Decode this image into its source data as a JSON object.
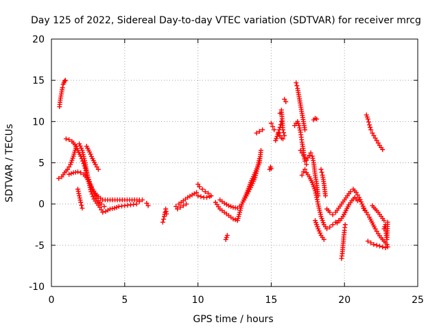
{
  "chart_data": {
    "type": "scatter",
    "title": "Day 125 of 2022, Sidereal Day-to-day VTEC variation (SDTVAR) for receiver mrcg",
    "xlabel": "GPS time / hours",
    "ylabel": "SDTVAR / TECUs",
    "xlim": [
      0,
      25
    ],
    "ylim": [
      -10,
      20
    ],
    "x_ticks": [
      0,
      5,
      10,
      15,
      20,
      25
    ],
    "y_ticks": [
      -10,
      -5,
      0,
      5,
      10,
      15,
      20
    ],
    "x_tick_labels": [
      "0",
      "5",
      "10",
      "15",
      "20",
      "25"
    ],
    "y_tick_labels": [
      "-10",
      "-5",
      "0",
      "5",
      "10",
      "15",
      "20"
    ],
    "grid": true,
    "marker": "+",
    "color": "#ff0000",
    "series": [
      {
        "name": "seg1",
        "x": [
          0.55,
          0.6,
          0.65,
          0.7,
          0.75,
          0.8,
          0.85,
          0.9,
          0.95
        ],
        "y": [
          11.8,
          12.6,
          13.1,
          13.6,
          14.1,
          14.5,
          14.7,
          14.9,
          15.0
        ]
      },
      {
        "name": "seg2",
        "x": [
          0.5,
          0.7,
          0.9,
          1.1,
          1.3,
          1.5,
          1.7,
          1.9,
          2.1,
          2.3,
          2.5,
          2.7,
          2.9,
          3.1,
          3.3,
          3.5,
          3.7,
          4.0,
          4.3,
          4.6,
          5.0,
          5.4,
          5.8,
          6.0,
          6.2
        ],
        "y": [
          3.1,
          3.3,
          3.8,
          4.2,
          4.8,
          5.8,
          7.0,
          7.3,
          6.5,
          5.0,
          3.0,
          1.5,
          0.6,
          0.1,
          -0.4,
          -1.0,
          -0.9,
          -0.6,
          -0.5,
          -0.3,
          -0.2,
          -0.1,
          0.0,
          0.3,
          0.5
        ]
      },
      {
        "name": "seg3",
        "x": [
          1.0,
          1.2,
          1.4,
          1.6,
          1.8,
          2.0,
          2.2,
          2.4,
          2.6,
          2.8,
          3.0,
          3.2,
          3.5,
          4.0,
          4.5,
          5.0,
          5.5,
          6.0
        ],
        "y": [
          7.9,
          7.8,
          7.6,
          7.2,
          6.5,
          5.8,
          4.9,
          3.8,
          2.7,
          1.8,
          1.3,
          0.9,
          0.5,
          0.5,
          0.5,
          0.5,
          0.5,
          0.5
        ]
      },
      {
        "name": "seg4",
        "x": [
          1.2,
          1.5,
          1.8,
          2.0,
          2.2,
          2.4,
          2.6,
          2.8,
          3.0,
          3.2,
          3.4,
          3.6
        ],
        "y": [
          3.6,
          3.8,
          3.9,
          3.8,
          3.6,
          3.2,
          2.5,
          1.7,
          1.0,
          0.4,
          0.0,
          -0.3
        ]
      },
      {
        "name": "seg5",
        "x": [
          2.4,
          2.6,
          2.8,
          3.0,
          3.2
        ],
        "y": [
          7.0,
          6.3,
          5.5,
          4.8,
          4.2
        ]
      },
      {
        "name": "seg6",
        "x": [
          1.8,
          1.9,
          2.0,
          2.1
        ],
        "y": [
          1.8,
          1.0,
          0.2,
          -0.5
        ]
      },
      {
        "name": "seg7",
        "x": [
          6.5,
          6.6
        ],
        "y": [
          0.1,
          -0.2
        ]
      },
      {
        "name": "seg8",
        "x": [
          7.6,
          7.7,
          7.75,
          7.8,
          7.85
        ],
        "y": [
          -2.2,
          -1.5,
          -1.0,
          -0.6,
          -1.2
        ]
      },
      {
        "name": "seg9",
        "x": [
          8.5,
          8.7,
          9.0,
          9.3,
          9.6,
          9.9
        ],
        "y": [
          -0.3,
          0.0,
          0.4,
          0.8,
          1.1,
          1.4
        ]
      },
      {
        "name": "seg10",
        "x": [
          8.6,
          8.8,
          9.0,
          9.2
        ],
        "y": [
          -0.6,
          -0.4,
          -0.2,
          0.0
        ]
      },
      {
        "name": "seg11",
        "x": [
          10.0,
          10.1,
          10.3,
          10.5,
          10.7,
          10.9
        ],
        "y": [
          2.4,
          2.1,
          1.8,
          1.5,
          1.3,
          1.0
        ]
      },
      {
        "name": "seg12",
        "x": [
          10.0,
          10.2,
          10.4,
          10.6,
          10.8
        ],
        "y": [
          1.0,
          0.9,
          0.8,
          0.8,
          0.9
        ]
      },
      {
        "name": "seg13",
        "x": [
          11.2,
          11.5,
          11.8,
          12.1,
          12.4,
          12.7,
          13.0,
          13.3,
          13.6,
          13.9,
          14.2
        ],
        "y": [
          0.2,
          -0.6,
          -1.0,
          -1.4,
          -1.8,
          -2.0,
          0.0,
          1.0,
          2.0,
          3.2,
          5.5
        ]
      },
      {
        "name": "seg14",
        "x": [
          11.5,
          11.8,
          12.1,
          12.4,
          12.7,
          13.0,
          13.3,
          13.6,
          13.9,
          14.2,
          14.3
        ],
        "y": [
          0.5,
          0.1,
          -0.2,
          -0.4,
          -0.5,
          0.0,
          1.2,
          2.6,
          3.8,
          5.0,
          6.5
        ]
      },
      {
        "name": "seg15",
        "x": [
          11.9,
          12.0
        ],
        "y": [
          -4.3,
          -3.8
        ]
      },
      {
        "name": "seg16",
        "x": [
          14.0,
          14.2,
          14.4
        ],
        "y": [
          8.6,
          8.8,
          9.0
        ]
      },
      {
        "name": "seg17",
        "x": [
          14.9,
          14.95,
          15.0
        ],
        "y": [
          4.2,
          4.5,
          4.3
        ]
      },
      {
        "name": "seg18",
        "x": [
          15.0,
          15.1,
          15.2
        ],
        "y": [
          9.8,
          9.4,
          9.0
        ]
      },
      {
        "name": "seg19",
        "x": [
          15.3,
          15.4,
          15.5,
          15.6,
          15.7
        ],
        "y": [
          7.7,
          8.2,
          8.7,
          9.3,
          10.0
        ]
      },
      {
        "name": "seg20",
        "x": [
          15.6,
          15.7,
          15.8,
          15.9
        ],
        "y": [
          11.0,
          11.4,
          9.0,
          8.3
        ]
      },
      {
        "name": "seg21",
        "x": [
          15.5,
          15.6,
          15.7,
          15.8
        ],
        "y": [
          8.6,
          8.3,
          8.0,
          7.9
        ]
      },
      {
        "name": "seg22",
        "x": [
          15.9,
          16.0
        ],
        "y": [
          12.7,
          12.4
        ]
      },
      {
        "name": "seg23",
        "x": [
          16.6,
          16.7,
          16.8,
          16.9,
          17.0,
          17.1,
          17.2,
          17.3,
          17.4
        ],
        "y": [
          9.5,
          9.8,
          10.0,
          9.5,
          8.7,
          7.5,
          6.5,
          5.2,
          4.8
        ]
      },
      {
        "name": "seg24",
        "x": [
          16.7,
          16.8,
          16.9,
          17.0,
          17.1,
          17.2,
          17.3
        ],
        "y": [
          14.7,
          14.0,
          13.0,
          12.0,
          11.0,
          10.0,
          9.0
        ]
      },
      {
        "name": "seg25",
        "x": [
          17.0,
          17.1,
          17.2,
          17.3,
          17.4,
          17.5,
          17.6
        ],
        "y": [
          6.5,
          6.2,
          5.9,
          5.5,
          5.3,
          5.6,
          5.9
        ]
      },
      {
        "name": "seg26",
        "x": [
          17.1,
          17.2,
          17.3,
          17.4
        ],
        "y": [
          3.5,
          3.9,
          4.2,
          3.8
        ]
      },
      {
        "name": "seg27",
        "x": [
          17.4,
          17.6,
          17.8,
          18.0,
          18.2,
          18.4,
          18.6,
          18.8,
          19.0,
          19.2,
          19.4,
          19.6
        ],
        "y": [
          3.8,
          3.3,
          2.6,
          1.6,
          0.0,
          -1.5,
          -2.5,
          -3.0,
          -2.8,
          -2.5,
          -2.2,
          -2.0
        ]
      },
      {
        "name": "seg28",
        "x": [
          17.7,
          17.8,
          17.9,
          18.0,
          18.1,
          18.2
        ],
        "y": [
          6.2,
          5.8,
          5.0,
          3.5,
          2.5,
          1.0
        ]
      },
      {
        "name": "seg29",
        "x": [
          17.9,
          18.0,
          18.1
        ],
        "y": [
          10.2,
          10.4,
          10.3
        ]
      },
      {
        "name": "seg30",
        "x": [
          18.0,
          18.2,
          18.4,
          18.6
        ],
        "y": [
          -2.0,
          -3.0,
          -3.8,
          -4.3
        ]
      },
      {
        "name": "seg31",
        "x": [
          18.4,
          18.5,
          18.6,
          18.7
        ],
        "y": [
          4.2,
          3.5,
          2.5,
          1.0
        ]
      },
      {
        "name": "seg32",
        "x": [
          18.8,
          19.0,
          19.2,
          19.4,
          19.6,
          19.8,
          20.0,
          20.2,
          20.4,
          20.6,
          20.8,
          21.0,
          21.2,
          21.4
        ],
        "y": [
          -0.6,
          -1.0,
          -1.3,
          -1.0,
          -0.5,
          0.0,
          0.5,
          1.0,
          1.5,
          1.8,
          1.4,
          0.8,
          0.0,
          -0.8
        ]
      },
      {
        "name": "seg33",
        "x": [
          19.5,
          19.7,
          19.9,
          20.1,
          20.3,
          20.5,
          20.7,
          20.9
        ],
        "y": [
          -2.3,
          -2.0,
          -1.5,
          -0.8,
          -0.1,
          0.4,
          0.8,
          0.4
        ]
      },
      {
        "name": "seg34",
        "x": [
          19.8,
          19.85,
          19.9,
          19.95,
          20.0,
          20.05
        ],
        "y": [
          -6.6,
          -6.0,
          -5.0,
          -4.0,
          -3.2,
          -2.5
        ]
      },
      {
        "name": "seg35",
        "x": [
          21.5,
          21.6,
          21.7,
          21.8,
          21.9,
          22.0,
          22.2,
          22.4,
          22.6
        ],
        "y": [
          10.8,
          10.3,
          9.6,
          9.0,
          8.6,
          8.3,
          7.7,
          7.1,
          6.6
        ]
      },
      {
        "name": "seg36",
        "x": [
          21.3,
          21.5,
          21.7,
          21.9,
          22.1,
          22.3,
          22.5,
          22.7,
          22.9
        ],
        "y": [
          -0.5,
          -1.0,
          -1.6,
          -2.3,
          -3.0,
          -3.6,
          -4.1,
          -4.5,
          -4.9
        ]
      },
      {
        "name": "seg37",
        "x": [
          21.6,
          21.8,
          22.0,
          22.2,
          22.4,
          22.6,
          22.8,
          22.95
        ],
        "y": [
          -4.5,
          -4.7,
          -4.9,
          -5.0,
          -5.1,
          -5.2,
          -5.3,
          -5.2
        ]
      },
      {
        "name": "seg38",
        "x": [
          21.9,
          22.1,
          22.3,
          22.5,
          22.7
        ],
        "y": [
          -0.2,
          -0.6,
          -1.0,
          -1.5,
          -2.0
        ]
      },
      {
        "name": "seg39",
        "x": [
          22.7,
          22.8,
          22.85,
          22.9,
          22.95
        ],
        "y": [
          -3.0,
          -2.5,
          -3.8,
          -4.3,
          -2.2
        ]
      }
    ]
  }
}
